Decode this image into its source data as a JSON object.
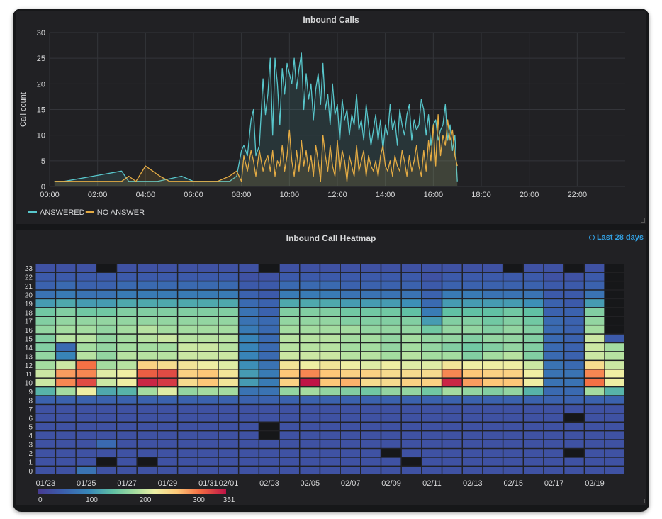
{
  "panels": {
    "calls": {
      "title": "Inbound Calls"
    },
    "heatmap": {
      "title": "Inbound Call Heatmap",
      "time_range": "Last 28 days"
    }
  },
  "colors": {
    "answered": "#58c7cc",
    "no_answer": "#e5ac44",
    "panel_bg": "#212124",
    "empty_cell": "#161719"
  },
  "chart_data": [
    {
      "type": "area",
      "title": "Inbound Calls",
      "ylabel": "Call count",
      "xlabel": "",
      "ylim": [
        0,
        30
      ],
      "xlim": [
        0,
        24
      ],
      "y_ticks": [
        "0",
        "5",
        "10",
        "15",
        "20",
        "25",
        "30"
      ],
      "x_ticks": [
        "00:00",
        "02:00",
        "04:00",
        "06:00",
        "08:00",
        "10:00",
        "12:00",
        "14:00",
        "16:00",
        "18:00",
        "20:00",
        "22:00"
      ],
      "grid": true,
      "legend_position": "bottom-left",
      "series": [
        {
          "name": "ANSWERED",
          "color": "#58c7cc",
          "x": [
            0.2,
            0.6,
            3.0,
            3.3,
            4.5,
            5.5,
            6.0,
            7.0,
            7.5,
            7.8,
            8.0,
            8.1,
            8.25,
            8.4,
            8.5,
            8.6,
            8.75,
            8.9,
            9.0,
            9.1,
            9.2,
            9.3,
            9.4,
            9.5,
            9.6,
            9.7,
            9.8,
            9.9,
            10.0,
            10.1,
            10.2,
            10.3,
            10.4,
            10.5,
            10.6,
            10.7,
            10.8,
            10.9,
            11.0,
            11.1,
            11.2,
            11.3,
            11.4,
            11.5,
            11.6,
            11.7,
            11.8,
            11.9,
            12.0,
            12.1,
            12.2,
            12.3,
            12.4,
            12.5,
            12.6,
            12.7,
            12.8,
            12.9,
            13.0,
            13.1,
            13.2,
            13.3,
            13.4,
            13.5,
            13.6,
            13.7,
            13.8,
            13.9,
            14.0,
            14.1,
            14.2,
            14.3,
            14.4,
            14.5,
            14.6,
            14.7,
            14.8,
            14.9,
            15.0,
            15.1,
            15.2,
            15.3,
            15.4,
            15.5,
            15.6,
            15.7,
            15.8,
            15.9,
            16.0,
            16.1,
            16.2,
            16.3,
            16.4,
            16.5,
            16.6,
            16.7,
            16.8,
            16.9,
            17.0
          ],
          "y": [
            1,
            1,
            3,
            1,
            1,
            2,
            1,
            1,
            1,
            2,
            7,
            8,
            6,
            13,
            15,
            6,
            8,
            21,
            14,
            18,
            25,
            10,
            25,
            20,
            12,
            23,
            18,
            24,
            22,
            20,
            25,
            19,
            23,
            26,
            15,
            22,
            17,
            20,
            13,
            19,
            22,
            16,
            24,
            15,
            18,
            12,
            20,
            14,
            16,
            9,
            17,
            13,
            15,
            10,
            14,
            12,
            18,
            11,
            13,
            9,
            16,
            12,
            8,
            11,
            14,
            9,
            13,
            7,
            12,
            10,
            16,
            11,
            13,
            8,
            15,
            12,
            10,
            14,
            16,
            9,
            13,
            11,
            12,
            17,
            15,
            10,
            14,
            8,
            12,
            13,
            9,
            11,
            12,
            16,
            9,
            12,
            7,
            10,
            1
          ]
        },
        {
          "name": "NO ANSWER",
          "color": "#e5ac44",
          "x": [
            0.2,
            0.6,
            2.5,
            3.0,
            3.3,
            3.6,
            4.0,
            4.3,
            4.6,
            5.0,
            5.5,
            6.0,
            7.0,
            7.5,
            7.8,
            8.0,
            8.1,
            8.25,
            8.4,
            8.5,
            8.6,
            8.75,
            8.9,
            9.0,
            9.1,
            9.2,
            9.3,
            9.4,
            9.5,
            9.6,
            9.7,
            9.8,
            9.9,
            10.0,
            10.1,
            10.2,
            10.3,
            10.4,
            10.5,
            10.6,
            10.7,
            10.8,
            10.9,
            11.0,
            11.1,
            11.2,
            11.3,
            11.4,
            11.5,
            11.6,
            11.7,
            11.8,
            11.9,
            12.0,
            12.1,
            12.2,
            12.3,
            12.4,
            12.5,
            12.6,
            12.7,
            12.8,
            12.9,
            13.0,
            13.1,
            13.2,
            13.3,
            13.4,
            13.5,
            13.6,
            13.7,
            13.8,
            13.9,
            14.0,
            14.1,
            14.2,
            14.3,
            14.4,
            14.5,
            14.6,
            14.7,
            14.8,
            14.9,
            15.0,
            15.1,
            15.2,
            15.3,
            15.4,
            15.5,
            15.6,
            15.7,
            15.8,
            15.9,
            16.0,
            16.1,
            16.2,
            16.3,
            16.4,
            16.5,
            16.6,
            16.7,
            16.8,
            16.9,
            17.0
          ],
          "y": [
            1,
            1,
            1,
            1,
            2,
            1,
            4,
            3,
            2,
            1,
            1,
            1,
            1,
            2,
            3,
            1,
            6,
            3,
            7,
            5,
            2,
            7,
            3,
            5,
            6,
            3,
            7,
            2,
            5,
            4,
            8,
            3,
            6,
            11,
            5,
            2,
            7,
            3,
            9,
            4,
            7,
            3,
            6,
            2,
            8,
            5,
            1,
            10,
            6,
            3,
            8,
            4,
            2,
            9,
            3,
            7,
            5,
            1,
            6,
            4,
            2,
            8,
            3,
            5,
            7,
            2,
            6,
            4,
            3,
            5,
            2,
            6,
            8,
            4,
            3,
            5,
            2,
            6,
            4,
            3,
            7,
            5,
            2,
            6,
            3,
            5,
            8,
            4,
            2,
            7,
            3,
            9,
            5,
            12,
            4,
            14,
            6,
            10,
            8,
            13,
            9,
            11,
            6,
            4
          ]
        }
      ]
    },
    {
      "type": "heatmap",
      "title": "Inbound Call Heatmap",
      "y_ticks": [
        "0",
        "1",
        "2",
        "3",
        "4",
        "5",
        "6",
        "7",
        "8",
        "9",
        "10",
        "11",
        "12",
        "13",
        "14",
        "15",
        "16",
        "17",
        "18",
        "19",
        "20",
        "21",
        "22",
        "23"
      ],
      "x_ticks": [
        "01/23",
        "01/25",
        "01/27",
        "01/29",
        "01/31",
        "02/01",
        "02/03",
        "02/05",
        "02/07",
        "02/09",
        "02/11",
        "02/13",
        "02/15",
        "02/17",
        "02/19"
      ],
      "days": [
        "01/23",
        "01/24",
        "01/25",
        "01/26",
        "01/27",
        "01/28",
        "01/29",
        "01/30",
        "01/31",
        "02/01",
        "02/02",
        "02/03",
        "02/04",
        "02/05",
        "02/06",
        "02/07",
        "02/08",
        "02/09",
        "02/10",
        "02/11",
        "02/12",
        "02/13",
        "02/14",
        "02/15",
        "02/16",
        "02/17",
        "02/18",
        "02/19",
        "02/20"
      ],
      "color_scale": {
        "min": 0,
        "max": 351,
        "labels": [
          "0",
          "100",
          "200",
          "300",
          "351"
        ]
      },
      "values": [
        [
          30,
          30,
          70,
          30,
          30,
          30,
          30,
          30,
          30,
          30,
          30,
          30,
          30,
          30,
          30,
          30,
          30,
          30,
          30,
          30,
          30,
          30,
          30,
          30,
          30,
          30,
          30,
          30,
          30
        ],
        [
          30,
          30,
          30,
          null,
          30,
          null,
          30,
          30,
          30,
          30,
          30,
          30,
          30,
          30,
          30,
          30,
          30,
          30,
          null,
          30,
          30,
          30,
          30,
          30,
          30,
          30,
          30,
          30,
          30
        ],
        [
          30,
          30,
          30,
          30,
          30,
          30,
          30,
          30,
          30,
          30,
          30,
          30,
          30,
          30,
          30,
          30,
          30,
          null,
          30,
          30,
          30,
          30,
          30,
          30,
          30,
          30,
          null,
          30,
          30
        ],
        [
          30,
          30,
          30,
          60,
          30,
          30,
          30,
          30,
          30,
          30,
          30,
          30,
          30,
          30,
          30,
          30,
          30,
          30,
          30,
          30,
          30,
          30,
          30,
          30,
          30,
          30,
          30,
          30,
          30
        ],
        [
          30,
          30,
          30,
          30,
          30,
          30,
          30,
          30,
          30,
          30,
          30,
          null,
          30,
          30,
          30,
          30,
          30,
          30,
          30,
          30,
          30,
          30,
          30,
          30,
          30,
          30,
          30,
          30,
          30
        ],
        [
          30,
          30,
          30,
          30,
          30,
          30,
          30,
          30,
          30,
          30,
          30,
          null,
          30,
          30,
          30,
          30,
          30,
          30,
          30,
          30,
          30,
          30,
          30,
          30,
          30,
          30,
          30,
          30,
          30
        ],
        [
          30,
          30,
          30,
          30,
          30,
          30,
          30,
          30,
          30,
          30,
          30,
          30,
          30,
          30,
          30,
          30,
          30,
          30,
          30,
          30,
          30,
          30,
          30,
          30,
          30,
          30,
          null,
          30,
          30
        ],
        [
          30,
          30,
          30,
          30,
          30,
          30,
          30,
          30,
          30,
          30,
          30,
          30,
          30,
          30,
          30,
          30,
          30,
          30,
          30,
          30,
          30,
          30,
          30,
          30,
          30,
          30,
          30,
          30,
          30
        ],
        [
          50,
          50,
          50,
          50,
          50,
          50,
          50,
          50,
          50,
          50,
          50,
          50,
          50,
          50,
          50,
          50,
          50,
          50,
          50,
          50,
          50,
          50,
          50,
          50,
          50,
          50,
          50,
          50,
          50
        ],
        [
          130,
          180,
          220,
          120,
          130,
          180,
          210,
          170,
          180,
          180,
          70,
          70,
          170,
          180,
          170,
          160,
          150,
          170,
          170,
          150,
          180,
          170,
          160,
          170,
          130,
          60,
          60,
          180,
          130
        ],
        [
          200,
          290,
          320,
          200,
          220,
          340,
          330,
          240,
          260,
          230,
          110,
          80,
          250,
          350,
          260,
          270,
          240,
          240,
          250,
          250,
          340,
          280,
          260,
          260,
          220,
          70,
          70,
          300,
          220
        ],
        [
          200,
          280,
          290,
          210,
          220,
          310,
          320,
          250,
          260,
          230,
          110,
          80,
          260,
          290,
          260,
          250,
          250,
          240,
          240,
          240,
          290,
          260,
          250,
          250,
          220,
          70,
          70,
          290,
          220
        ],
        [
          180,
          200,
          300,
          180,
          190,
          250,
          240,
          230,
          220,
          210,
          100,
          70,
          230,
          220,
          230,
          220,
          210,
          220,
          210,
          210,
          230,
          220,
          220,
          220,
          200,
          70,
          60,
          240,
          200
        ],
        [
          170,
          90,
          190,
          170,
          190,
          190,
          190,
          200,
          200,
          200,
          90,
          60,
          200,
          200,
          200,
          190,
          190,
          180,
          190,
          180,
          180,
          160,
          180,
          190,
          160,
          60,
          50,
          200,
          190
        ],
        [
          160,
          60,
          180,
          170,
          180,
          180,
          180,
          200,
          200,
          190,
          90,
          60,
          190,
          190,
          190,
          180,
          180,
          170,
          180,
          170,
          160,
          150,
          160,
          170,
          160,
          60,
          50,
          200,
          180
        ],
        [
          160,
          190,
          190,
          170,
          180,
          190,
          200,
          190,
          190,
          190,
          90,
          60,
          190,
          190,
          190,
          180,
          180,
          170,
          180,
          170,
          170,
          160,
          170,
          170,
          160,
          60,
          50,
          200,
          40
        ],
        [
          170,
          180,
          180,
          170,
          180,
          190,
          180,
          180,
          180,
          180,
          80,
          60,
          180,
          180,
          180,
          180,
          170,
          170,
          170,
          150,
          170,
          170,
          160,
          170,
          160,
          60,
          50,
          180,
          null
        ],
        [
          160,
          170,
          170,
          170,
          170,
          170,
          170,
          170,
          170,
          170,
          70,
          60,
          170,
          170,
          170,
          160,
          160,
          160,
          160,
          110,
          160,
          160,
          150,
          160,
          150,
          60,
          50,
          170,
          null
        ],
        [
          150,
          160,
          150,
          150,
          160,
          160,
          160,
          160,
          160,
          160,
          70,
          50,
          160,
          160,
          160,
          150,
          150,
          150,
          140,
          80,
          140,
          140,
          140,
          150,
          140,
          50,
          50,
          160,
          null
        ],
        [
          110,
          120,
          110,
          110,
          120,
          120,
          120,
          120,
          120,
          120,
          60,
          50,
          120,
          120,
          120,
          110,
          110,
          110,
          100,
          60,
          110,
          110,
          110,
          110,
          100,
          50,
          40,
          110,
          null
        ],
        [
          70,
          80,
          70,
          70,
          80,
          80,
          80,
          80,
          80,
          80,
          50,
          40,
          80,
          80,
          80,
          70,
          70,
          70,
          70,
          50,
          80,
          80,
          70,
          70,
          70,
          40,
          40,
          70,
          null
        ],
        [
          50,
          60,
          50,
          50,
          60,
          60,
          60,
          60,
          60,
          60,
          40,
          40,
          60,
          60,
          60,
          50,
          50,
          50,
          50,
          40,
          50,
          50,
          50,
          50,
          50,
          40,
          40,
          50,
          null
        ],
        [
          40,
          40,
          40,
          40,
          40,
          40,
          40,
          40,
          40,
          40,
          30,
          30,
          40,
          40,
          40,
          40,
          40,
          40,
          40,
          30,
          40,
          40,
          40,
          40,
          40,
          30,
          30,
          40,
          null
        ],
        [
          30,
          30,
          30,
          null,
          30,
          30,
          30,
          30,
          30,
          30,
          30,
          null,
          30,
          30,
          30,
          30,
          30,
          30,
          30,
          30,
          30,
          30,
          30,
          null,
          30,
          30,
          null,
          30,
          null
        ]
      ]
    }
  ]
}
